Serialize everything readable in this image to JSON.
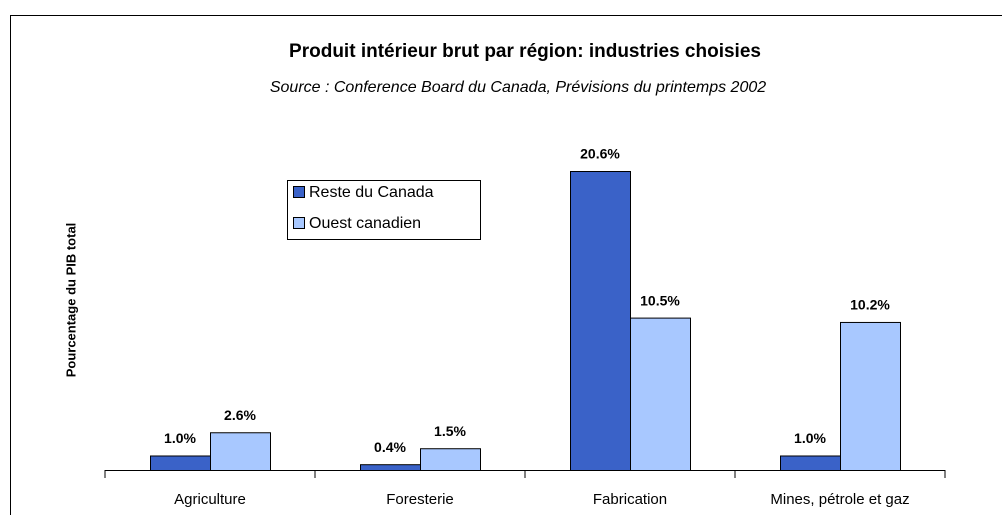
{
  "chart_data": {
    "type": "bar",
    "title": "Produit intérieur brut par région: industries choisies",
    "subtitle": "Source : Conference Board du Canada, Prévisions du printemps 2002",
    "y_label": "Pourcentage du PIB total",
    "categories": [
      "Agriculture",
      "Foresterie",
      "Fabrication",
      "Mines, pétrole et gaz"
    ],
    "series": [
      {
        "name": "Reste du Canada",
        "color": "#3a62c8",
        "values": [
          1.0,
          0.4,
          20.6,
          1.0
        ],
        "value_labels": [
          "1.0%",
          "0.4%",
          "20.6%",
          "1.0%"
        ]
      },
      {
        "name": "Ouest canadien",
        "color": "#a8c8ff",
        "values": [
          2.6,
          1.5,
          10.5,
          10.2
        ],
        "value_labels": [
          "2.6%",
          "1.5%",
          "10.5%",
          "10.2%"
        ]
      }
    ],
    "legend": "upper left"
  }
}
